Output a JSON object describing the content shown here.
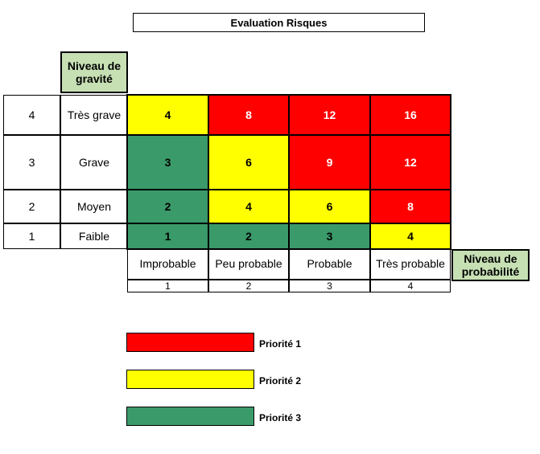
{
  "title": "Evaluation Risques",
  "gravity_header": "Niveau de gravité",
  "probability_header": "Niveau de probabilité",
  "gravity_rows": [
    {
      "num": "4",
      "label": "Très grave"
    },
    {
      "num": "3",
      "label": "Grave"
    },
    {
      "num": "2",
      "label": "Moyen"
    },
    {
      "num": "1",
      "label": "Faible"
    }
  ],
  "probability_cols": [
    {
      "label": "Improbable",
      "num": "1"
    },
    {
      "label": "Peu probable",
      "num": "2"
    },
    {
      "label": "Probable",
      "num": "3"
    },
    {
      "label": "Très probable",
      "num": "4"
    }
  ],
  "matrix": [
    [
      {
        "v": "4",
        "c": "yellow"
      },
      {
        "v": "8",
        "c": "red"
      },
      {
        "v": "12",
        "c": "red"
      },
      {
        "v": "16",
        "c": "red"
      }
    ],
    [
      {
        "v": "3",
        "c": "green"
      },
      {
        "v": "6",
        "c": "yellow"
      },
      {
        "v": "9",
        "c": "red"
      },
      {
        "v": "12",
        "c": "red"
      }
    ],
    [
      {
        "v": "2",
        "c": "green"
      },
      {
        "v": "4",
        "c": "yellow"
      },
      {
        "v": "6",
        "c": "yellow"
      },
      {
        "v": "8",
        "c": "red"
      }
    ],
    [
      {
        "v": "1",
        "c": "green"
      },
      {
        "v": "2",
        "c": "green"
      },
      {
        "v": "3",
        "c": "green"
      },
      {
        "v": "4",
        "c": "yellow"
      }
    ]
  ],
  "legend": [
    {
      "label": "Priorité 1",
      "c": "red"
    },
    {
      "label": "Priorité 2",
      "c": "yellow"
    },
    {
      "label": "Priorité 3",
      "c": "green"
    }
  ],
  "colors": {
    "red": "#ff0000",
    "yellow": "#ffff00",
    "green": "#3a9a6a",
    "header_green": "#c6e0b4"
  }
}
